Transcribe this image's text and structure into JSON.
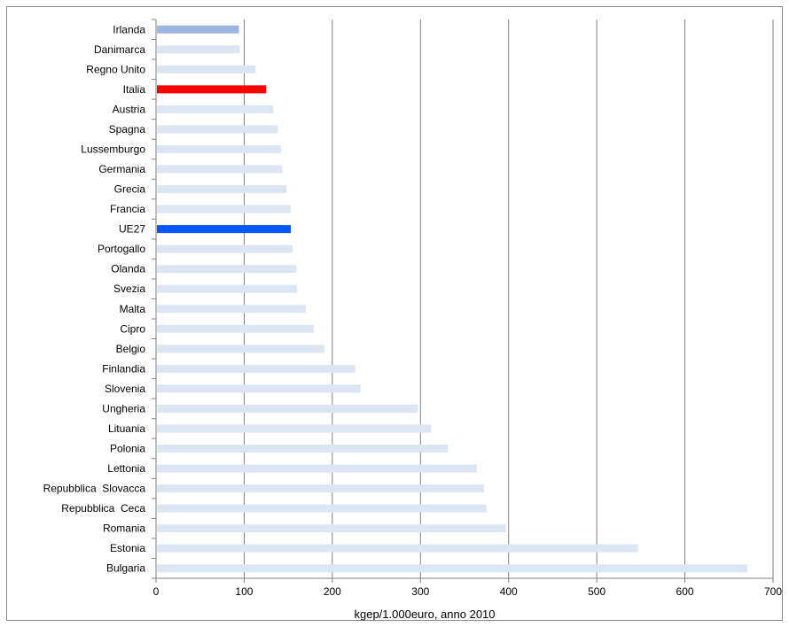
{
  "chart_data": {
    "type": "bar",
    "orientation": "horizontal",
    "categories": [
      "Irlanda",
      "Danimarca",
      "Regno Unito",
      "Italia",
      "Austria",
      "Spagna",
      "Lussemburgo",
      "Germania",
      "Grecia",
      "Francia",
      "UE27",
      "Portogallo",
      "Olanda",
      "Svezia",
      "Malta",
      "Cipro",
      "Belgio",
      "Finlandia",
      "Slovenia",
      "Ungheria",
      "Lituania",
      "Polonia",
      "Lettonia",
      "Repubblica  Slovacca",
      "Repubblica  Ceca",
      "Romania",
      "Estonia",
      "Bulgaria"
    ],
    "values": [
      94,
      95,
      113,
      125,
      133,
      138,
      142,
      143,
      148,
      153,
      153,
      155,
      159,
      160,
      170,
      179,
      191,
      226,
      232,
      297,
      312,
      331,
      364,
      372,
      375,
      397,
      547,
      671
    ],
    "colors": [
      "#9db6df",
      "#dce6f2",
      "#dce6f2",
      "#ff0000",
      "#dce6f2",
      "#dce6f2",
      "#dce6f2",
      "#dce6f2",
      "#dce6f2",
      "#dce6f2",
      "#0055ff",
      "#dce6f2",
      "#dce6f2",
      "#dce6f2",
      "#dce6f2",
      "#dce6f2",
      "#dce6f2",
      "#dce6f2",
      "#dce6f2",
      "#dce6f2",
      "#dce6f2",
      "#dce6f2",
      "#dce6f2",
      "#dce6f2",
      "#dce6f2",
      "#dce6f2",
      "#dce6f2",
      "#dce6f2"
    ],
    "xlabel": "kgep/1.000euro, anno 2010",
    "xlim": [
      0,
      700
    ],
    "xticks": [
      "0",
      "100",
      "200",
      "300",
      "400",
      "500",
      "600",
      "700"
    ],
    "grid": "vertical"
  }
}
